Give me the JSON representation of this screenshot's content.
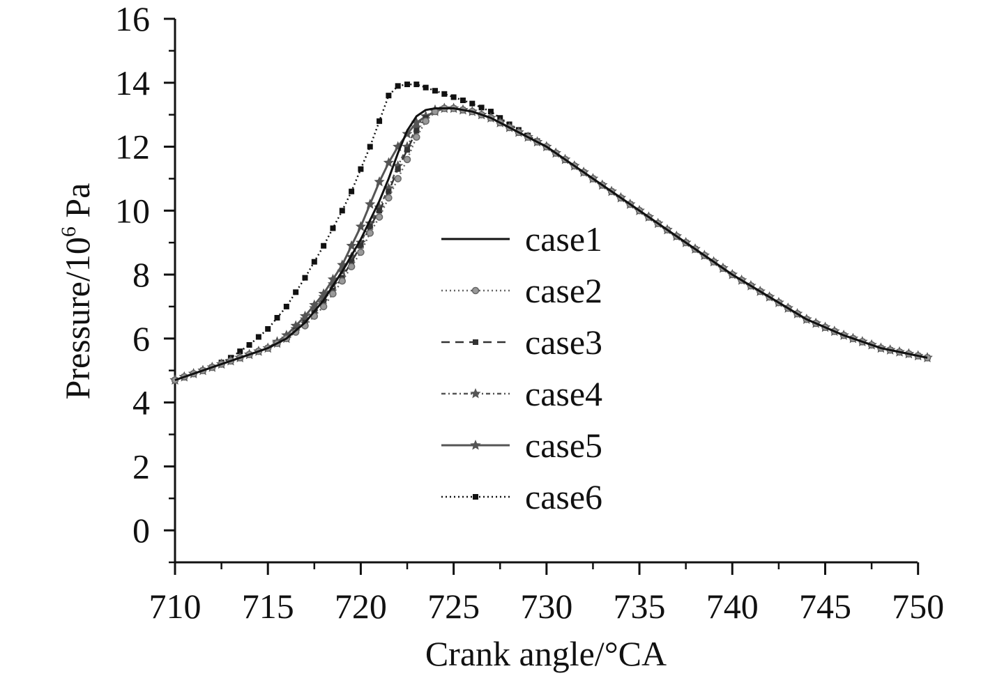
{
  "chart_data": {
    "type": "line",
    "title": "",
    "xlabel": "Crank angle/°CA",
    "ylabel_text": "Pressure/10",
    "ylabel_sup": "6",
    "ylabel_unit": " Pa",
    "xlim": [
      710,
      750.5
    ],
    "ylim": [
      -1,
      16
    ],
    "xticks": [
      710,
      715,
      720,
      725,
      730,
      735,
      740,
      745,
      750
    ],
    "yticks": [
      0,
      2,
      4,
      6,
      8,
      10,
      12,
      14,
      16
    ],
    "legend_position": "center",
    "series": [
      {
        "name": "case1",
        "line": "solid",
        "marker": "none",
        "color": "#111111",
        "x": [
          710,
          711,
          712,
          713,
          714,
          715,
          716,
          717,
          718,
          719,
          720,
          720.5,
          721,
          721.5,
          722,
          722.5,
          723,
          723.5,
          724,
          724.5,
          725,
          725.5,
          726,
          727,
          728,
          729,
          730,
          732,
          734,
          736,
          738,
          740,
          742,
          744,
          746,
          748,
          750.5
        ],
        "y": [
          4.7,
          4.9,
          5.1,
          5.3,
          5.5,
          5.7,
          6.0,
          6.5,
          7.2,
          8.1,
          9.1,
          9.7,
          10.3,
          11.0,
          11.8,
          12.5,
          12.95,
          13.15,
          13.2,
          13.2,
          13.2,
          13.15,
          13.1,
          12.9,
          12.6,
          12.3,
          12.0,
          11.2,
          10.4,
          9.6,
          8.8,
          8.0,
          7.3,
          6.6,
          6.1,
          5.7,
          5.4
        ]
      },
      {
        "name": "case2",
        "line": "dotted",
        "marker": "circle",
        "color": "#666666",
        "x": [
          710,
          711,
          712,
          713,
          714,
          715,
          716,
          717,
          718,
          719,
          720,
          720.5,
          721,
          721.5,
          722,
          722.5,
          723,
          723.5,
          724,
          724.5,
          725,
          725.5,
          726,
          727,
          728,
          729,
          730,
          732,
          734,
          736,
          738,
          740,
          742,
          744,
          746,
          748,
          750.5
        ],
        "y": [
          4.7,
          4.9,
          5.1,
          5.3,
          5.5,
          5.7,
          6.0,
          6.4,
          7.0,
          7.8,
          8.7,
          9.3,
          9.8,
          10.4,
          11.0,
          11.6,
          12.3,
          12.8,
          13.1,
          13.2,
          13.2,
          13.15,
          13.1,
          12.9,
          12.6,
          12.3,
          12.0,
          11.2,
          10.4,
          9.6,
          8.8,
          8.0,
          7.3,
          6.6,
          6.1,
          5.7,
          5.4
        ]
      },
      {
        "name": "case3",
        "line": "dashed",
        "marker": "square",
        "color": "#333333",
        "x": [
          710,
          711,
          712,
          713,
          714,
          715,
          716,
          717,
          718,
          719,
          720,
          720.5,
          721,
          721.5,
          722,
          722.5,
          723,
          723.5,
          724,
          724.5,
          725,
          725.5,
          726,
          727,
          728,
          729,
          730,
          732,
          734,
          736,
          738,
          740,
          742,
          744,
          746,
          748,
          750.5
        ],
        "y": [
          4.7,
          4.9,
          5.1,
          5.3,
          5.5,
          5.7,
          6.0,
          6.5,
          7.1,
          7.9,
          8.9,
          9.5,
          10.0,
          10.6,
          11.3,
          11.9,
          12.5,
          12.9,
          13.1,
          13.2,
          13.2,
          13.15,
          13.1,
          12.9,
          12.6,
          12.3,
          12.0,
          11.2,
          10.4,
          9.6,
          8.8,
          8.0,
          7.3,
          6.6,
          6.1,
          5.7,
          5.4
        ]
      },
      {
        "name": "case4",
        "line": "dashdot",
        "marker": "star",
        "color": "#555555",
        "x": [
          710,
          711,
          712,
          713,
          714,
          715,
          716,
          717,
          718,
          719,
          720,
          720.5,
          721,
          721.5,
          722,
          722.5,
          723,
          723.5,
          724,
          724.5,
          725,
          725.5,
          726,
          727,
          728,
          729,
          730,
          732,
          734,
          736,
          738,
          740,
          742,
          744,
          746,
          748,
          750.5
        ],
        "y": [
          4.7,
          4.9,
          5.1,
          5.3,
          5.5,
          5.7,
          6.0,
          6.6,
          7.3,
          8.1,
          9.0,
          9.6,
          10.1,
          10.7,
          11.4,
          12.0,
          12.6,
          12.95,
          13.15,
          13.2,
          13.2,
          13.15,
          13.1,
          12.9,
          12.6,
          12.3,
          12.0,
          11.2,
          10.4,
          9.6,
          8.8,
          8.0,
          7.3,
          6.6,
          6.1,
          5.7,
          5.4
        ]
      },
      {
        "name": "case5",
        "line": "solid",
        "marker": "star",
        "color": "#555555",
        "x": [
          710,
          711,
          712,
          713,
          714,
          715,
          716,
          717,
          718,
          719,
          720,
          720.5,
          721,
          721.5,
          722,
          722.5,
          723,
          723.5,
          724,
          724.5,
          725,
          725.5,
          726,
          727,
          728,
          729,
          730,
          732,
          734,
          736,
          738,
          740,
          742,
          744,
          746,
          748,
          750.5
        ],
        "y": [
          4.7,
          4.9,
          5.1,
          5.3,
          5.5,
          5.7,
          6.1,
          6.7,
          7.4,
          8.3,
          9.5,
          10.2,
          10.9,
          11.5,
          12.0,
          12.4,
          12.75,
          12.95,
          13.1,
          13.2,
          13.2,
          13.15,
          13.1,
          12.9,
          12.6,
          12.3,
          12.0,
          11.2,
          10.4,
          9.6,
          8.8,
          8.0,
          7.3,
          6.6,
          6.1,
          5.7,
          5.4
        ]
      },
      {
        "name": "case6",
        "line": "dotted",
        "marker": "square",
        "color": "#111111",
        "x": [
          710,
          711,
          712,
          713,
          714,
          715,
          716,
          717,
          718,
          719,
          719.5,
          720,
          720.5,
          721,
          721.5,
          722,
          722.5,
          723,
          723.5,
          724,
          724.5,
          725,
          725.5,
          726,
          727,
          728,
          729,
          730,
          732,
          734,
          736,
          738,
          740,
          742,
          744,
          746,
          748,
          750.5
        ],
        "y": [
          4.7,
          4.9,
          5.1,
          5.4,
          5.8,
          6.3,
          7.0,
          7.9,
          8.9,
          10.0,
          10.6,
          11.3,
          12.0,
          12.8,
          13.6,
          13.9,
          13.95,
          13.95,
          13.85,
          13.75,
          13.65,
          13.55,
          13.45,
          13.35,
          13.1,
          12.7,
          12.35,
          12.0,
          11.2,
          10.4,
          9.6,
          8.8,
          8.0,
          7.3,
          6.6,
          6.1,
          5.7,
          5.4
        ]
      }
    ]
  }
}
